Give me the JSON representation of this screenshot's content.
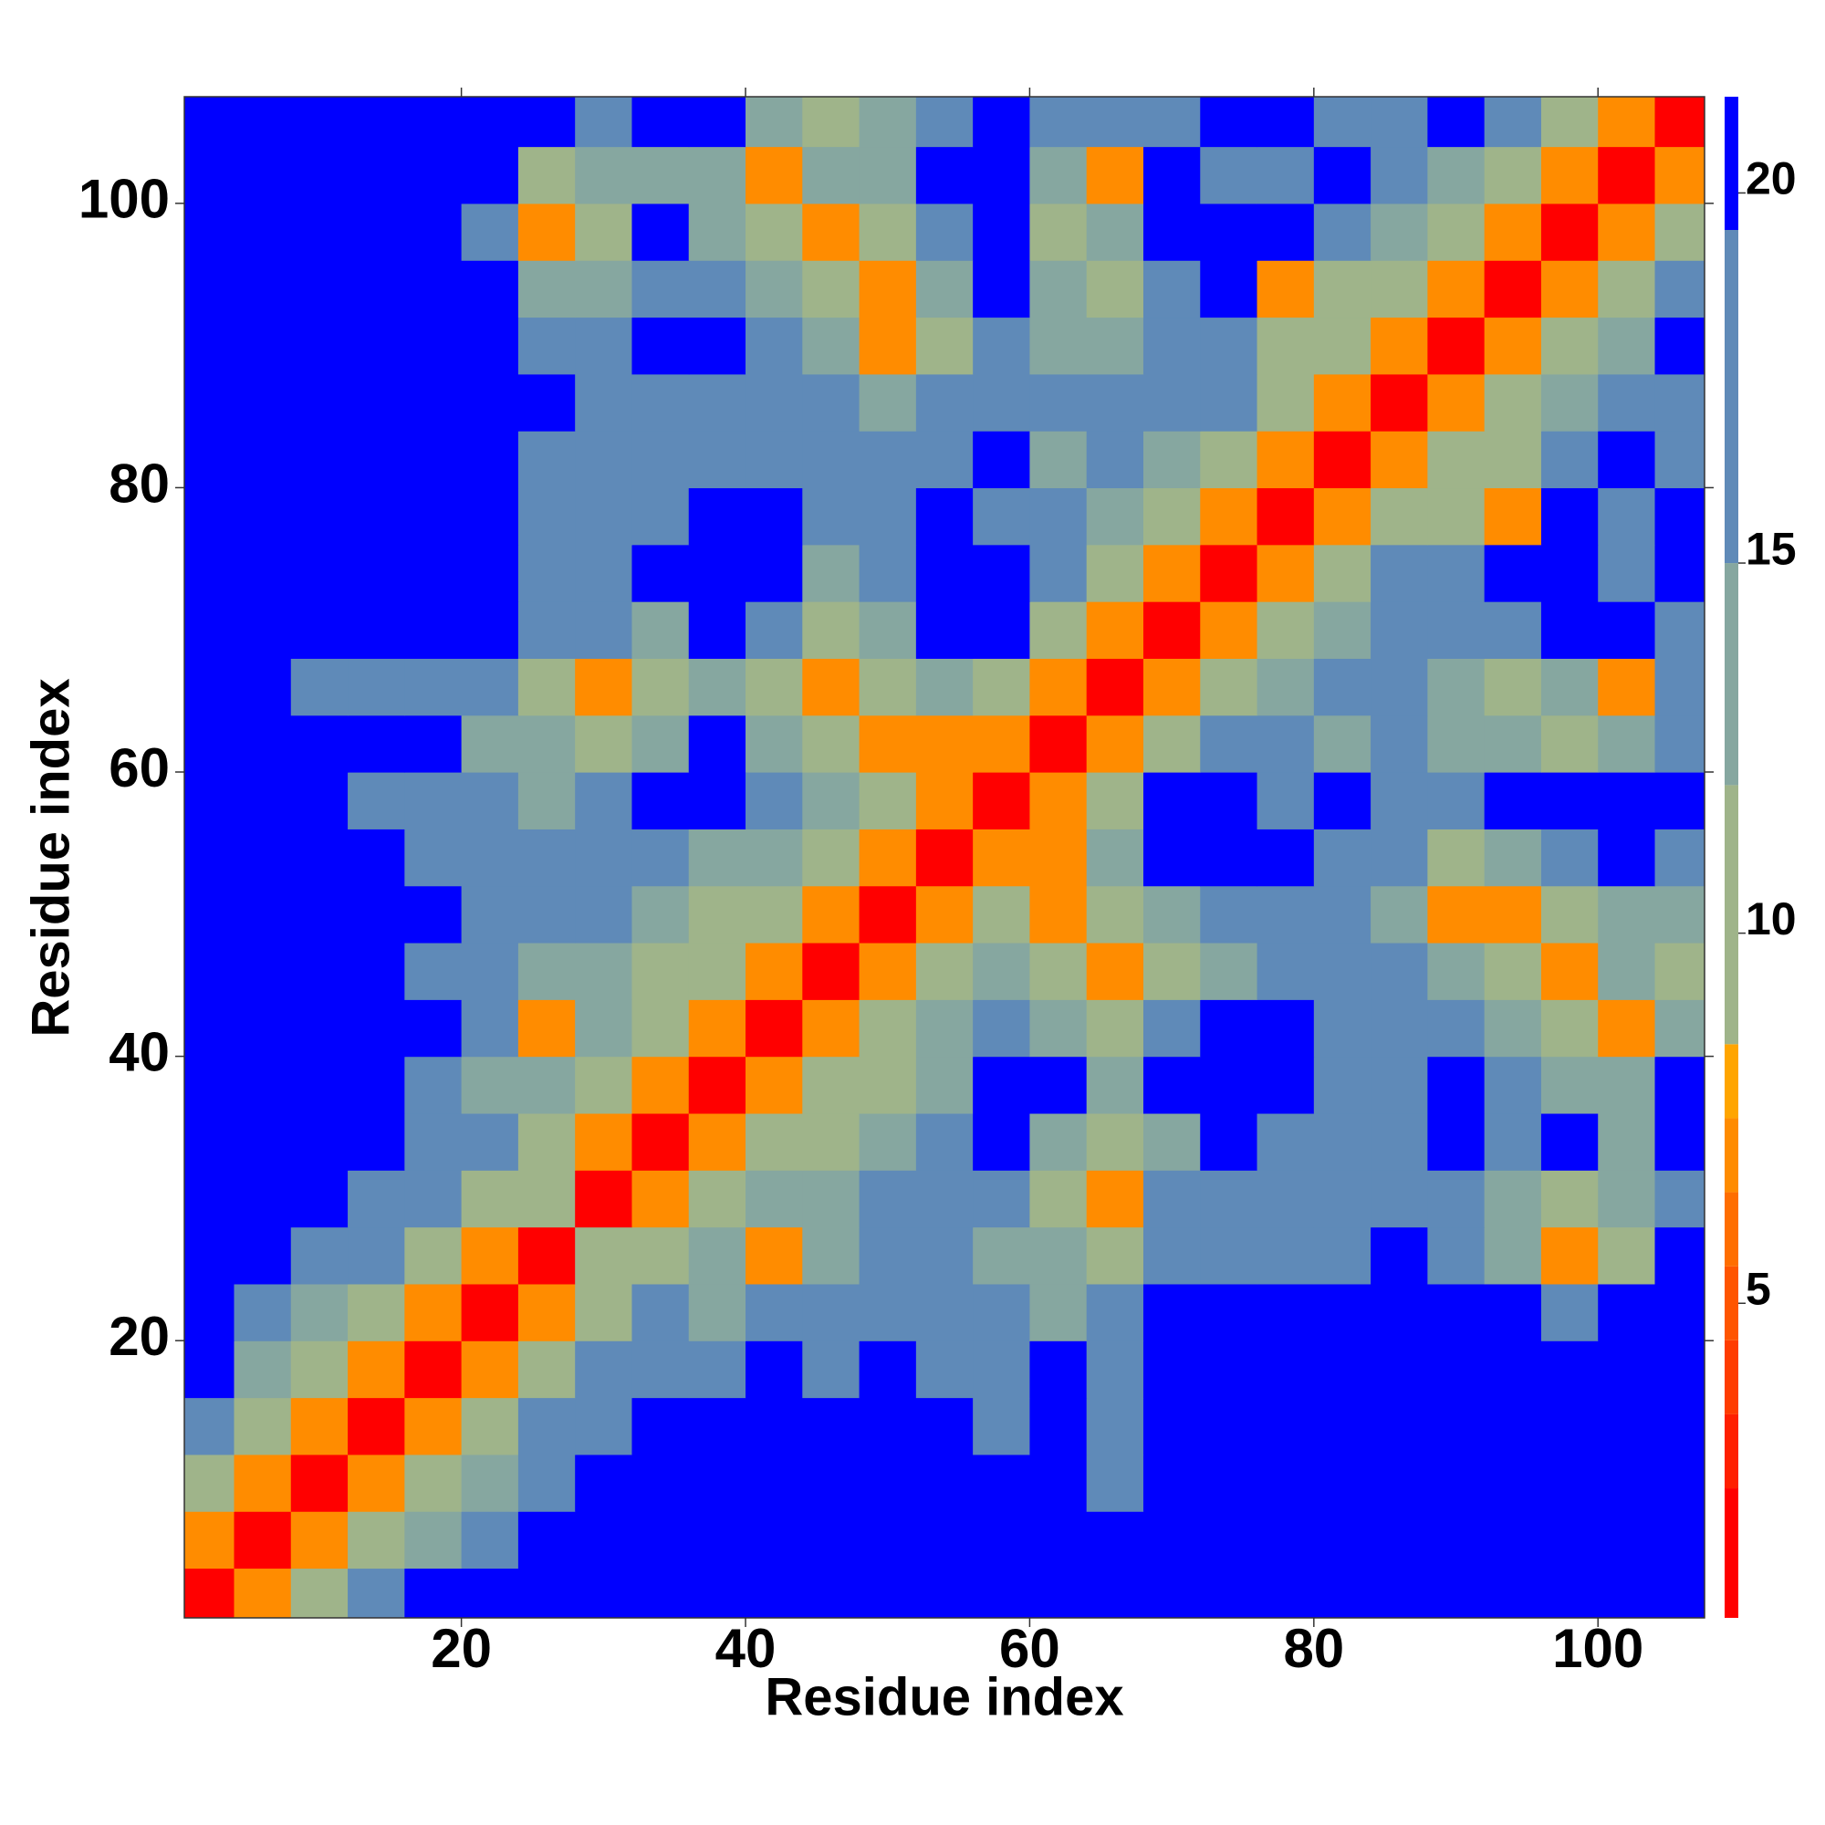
{
  "chart_data": {
    "type": "heatmap",
    "xlabel": "Residue index",
    "ylabel": "Residue index",
    "x": [
      2,
      6,
      10,
      14,
      18,
      22,
      26,
      30,
      34,
      38,
      42,
      46,
      50,
      54,
      58,
      62,
      66,
      70,
      74,
      78,
      82,
      86,
      90,
      94,
      98,
      102,
      106
    ],
    "y": [
      2,
      6,
      10,
      14,
      18,
      22,
      26,
      30,
      34,
      38,
      42,
      46,
      50,
      54,
      58,
      62,
      66,
      70,
      74,
      78,
      82,
      86,
      90,
      94,
      98,
      102,
      106
    ],
    "z": [
      [
        1,
        7,
        11,
        18,
        21,
        21,
        21,
        21,
        21,
        21,
        21,
        21,
        21,
        21,
        21,
        21,
        21,
        21,
        21,
        21,
        21,
        21,
        21,
        21,
        21,
        21,
        21
      ],
      [
        7,
        1,
        7,
        11,
        14,
        18,
        21,
        21,
        21,
        21,
        21,
        21,
        21,
        21,
        21,
        21,
        21,
        21,
        21,
        21,
        21,
        21,
        21,
        21,
        21,
        21,
        21
      ],
      [
        11,
        7,
        1,
        7,
        11,
        14,
        18,
        21,
        21,
        21,
        21,
        21,
        21,
        21,
        21,
        21,
        18,
        21,
        21,
        21,
        21,
        21,
        21,
        21,
        21,
        21,
        21
      ],
      [
        18,
        11,
        7,
        1,
        7,
        11,
        18,
        18,
        21,
        21,
        21,
        21,
        21,
        21,
        18,
        21,
        18,
        21,
        21,
        21,
        21,
        21,
        21,
        21,
        21,
        21,
        21
      ],
      [
        21,
        14,
        11,
        7,
        1,
        7,
        11,
        18,
        18,
        18,
        21,
        18,
        21,
        18,
        18,
        21,
        18,
        21,
        21,
        21,
        21,
        21,
        21,
        21,
        21,
        21,
        21
      ],
      [
        21,
        18,
        14,
        11,
        7,
        1,
        7,
        11,
        18,
        14,
        18,
        18,
        18,
        18,
        18,
        14,
        18,
        21,
        21,
        21,
        21,
        21,
        21,
        21,
        18,
        21,
        21
      ],
      [
        21,
        21,
        18,
        18,
        11,
        7,
        1,
        11,
        11,
        14,
        7,
        14,
        18,
        18,
        14,
        14,
        11,
        18,
        18,
        18,
        18,
        21,
        18,
        14,
        7,
        11,
        21
      ],
      [
        21,
        21,
        21,
        18,
        18,
        11,
        11,
        1,
        7,
        11,
        14,
        14,
        18,
        18,
        18,
        11,
        7,
        18,
        18,
        18,
        18,
        18,
        18,
        14,
        11,
        14,
        18
      ],
      [
        21,
        21,
        21,
        21,
        18,
        18,
        11,
        7,
        1,
        7,
        11,
        11,
        14,
        18,
        21,
        14,
        11,
        14,
        21,
        18,
        18,
        18,
        21,
        18,
        21,
        14,
        21
      ],
      [
        21,
        21,
        21,
        21,
        18,
        14,
        14,
        11,
        7,
        1,
        7,
        11,
        11,
        14,
        21,
        21,
        14,
        21,
        21,
        21,
        18,
        18,
        21,
        18,
        14,
        14,
        21
      ],
      [
        21,
        21,
        21,
        21,
        21,
        18,
        7,
        14,
        11,
        7,
        1,
        7,
        11,
        14,
        18,
        14,
        11,
        18,
        21,
        21,
        18,
        18,
        18,
        14,
        11,
        7,
        14
      ],
      [
        21,
        21,
        21,
        21,
        18,
        18,
        14,
        14,
        11,
        11,
        7,
        1,
        7,
        11,
        14,
        11,
        7,
        11,
        14,
        18,
        18,
        18,
        14,
        11,
        7,
        14,
        11
      ],
      [
        21,
        21,
        21,
        21,
        21,
        18,
        18,
        18,
        14,
        11,
        11,
        7,
        1,
        7,
        11,
        7,
        11,
        14,
        18,
        18,
        18,
        14,
        7,
        7,
        11,
        14,
        14
      ],
      [
        21,
        21,
        21,
        21,
        18,
        18,
        18,
        18,
        18,
        14,
        14,
        11,
        7,
        1,
        7,
        7,
        14,
        21,
        21,
        21,
        18,
        18,
        11,
        14,
        18,
        21,
        18
      ],
      [
        21,
        21,
        21,
        18,
        18,
        18,
        14,
        18,
        21,
        21,
        18,
        14,
        11,
        7,
        1,
        7,
        11,
        21,
        21,
        18,
        21,
        18,
        18,
        21,
        21,
        21,
        21
      ],
      [
        21,
        21,
        21,
        21,
        21,
        14,
        14,
        11,
        14,
        21,
        14,
        11,
        7,
        7,
        7,
        1,
        7,
        11,
        18,
        18,
        14,
        18,
        14,
        14,
        11,
        14,
        18
      ],
      [
        21,
        21,
        18,
        18,
        18,
        18,
        11,
        7,
        11,
        14,
        11,
        7,
        11,
        14,
        11,
        7,
        1,
        7,
        11,
        14,
        18,
        18,
        14,
        11,
        14,
        7,
        18
      ],
      [
        21,
        21,
        21,
        21,
        21,
        21,
        18,
        18,
        14,
        21,
        18,
        11,
        14,
        21,
        21,
        11,
        7,
        1,
        7,
        11,
        14,
        18,
        18,
        18,
        21,
        21,
        18
      ],
      [
        21,
        21,
        21,
        21,
        21,
        21,
        18,
        18,
        21,
        21,
        21,
        14,
        18,
        21,
        21,
        18,
        11,
        7,
        1,
        7,
        11,
        18,
        18,
        21,
        21,
        18,
        21
      ],
      [
        21,
        21,
        21,
        21,
        21,
        21,
        18,
        18,
        18,
        21,
        21,
        18,
        18,
        21,
        18,
        18,
        14,
        11,
        7,
        1,
        7,
        11,
        11,
        7,
        21,
        18,
        21
      ],
      [
        21,
        21,
        21,
        21,
        21,
        21,
        18,
        18,
        18,
        18,
        18,
        18,
        18,
        18,
        21,
        14,
        18,
        14,
        11,
        7,
        1,
        7,
        11,
        11,
        18,
        21,
        18
      ],
      [
        21,
        21,
        21,
        21,
        21,
        21,
        21,
        18,
        18,
        18,
        18,
        18,
        14,
        18,
        18,
        18,
        18,
        18,
        18,
        11,
        7,
        1,
        7,
        11,
        14,
        18,
        18
      ],
      [
        21,
        21,
        21,
        21,
        21,
        21,
        18,
        18,
        21,
        21,
        18,
        14,
        7,
        11,
        18,
        14,
        14,
        18,
        18,
        11,
        11,
        7,
        1,
        7,
        11,
        14,
        21
      ],
      [
        21,
        21,
        21,
        21,
        21,
        21,
        14,
        14,
        18,
        18,
        14,
        11,
        7,
        14,
        21,
        14,
        11,
        18,
        21,
        7,
        11,
        11,
        7,
        1,
        7,
        11,
        18
      ],
      [
        21,
        21,
        21,
        21,
        21,
        18,
        7,
        11,
        21,
        14,
        11,
        7,
        11,
        18,
        21,
        11,
        14,
        21,
        21,
        21,
        18,
        14,
        11,
        7,
        1,
        7,
        11
      ],
      [
        21,
        21,
        21,
        21,
        21,
        21,
        11,
        14,
        14,
        14,
        7,
        14,
        14,
        21,
        21,
        14,
        7,
        21,
        18,
        18,
        21,
        18,
        14,
        11,
        7,
        1,
        7
      ],
      [
        21,
        21,
        21,
        21,
        21,
        21,
        21,
        18,
        21,
        21,
        14,
        11,
        14,
        18,
        21,
        18,
        18,
        18,
        21,
        21,
        18,
        18,
        21,
        18,
        11,
        7,
        1
      ]
    ],
    "xlim": [
      0.5,
      107.5
    ],
    "ylim": [
      0.5,
      107.5
    ],
    "xticks": [
      20,
      40,
      60,
      80,
      100
    ],
    "yticks": [
      20,
      40,
      60,
      80,
      100
    ],
    "colorbar": {
      "clim": [
        0.75,
        21.3
      ],
      "ticks": [
        5,
        10,
        15,
        20
      ],
      "levels": [
        2.5,
        3.5,
        4.5,
        5.5,
        6.5,
        7.5,
        8.5,
        12,
        15,
        19.5
      ],
      "colors": [
        "#ff0000",
        "#ff2000",
        "#ff3c00",
        "#ff5500",
        "#ff6e00",
        "#ff8c00",
        "#ffa500",
        "#9fb48a",
        "#86a7a0",
        "#5f8ab8",
        "#0000ff"
      ]
    }
  }
}
